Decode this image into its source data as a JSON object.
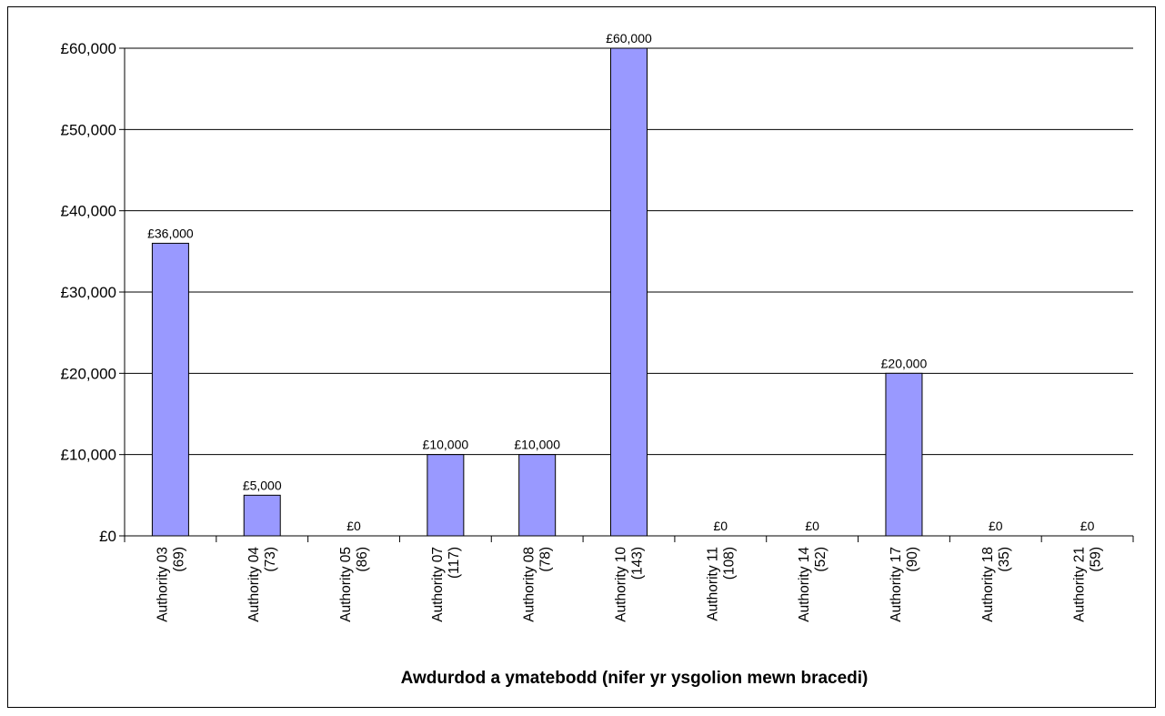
{
  "chart_data": {
    "type": "bar",
    "categories": [
      [
        "Authority 03",
        "(69)"
      ],
      [
        "Authority 04",
        "(73)"
      ],
      [
        "Authority 05",
        "(86)"
      ],
      [
        "Authority 07",
        "(117)"
      ],
      [
        "Authority 08",
        "(78)"
      ],
      [
        "Authority 10",
        "(143)"
      ],
      [
        "Authority 11",
        "(108)"
      ],
      [
        "Authority 14",
        "(52)"
      ],
      [
        "Authority 17",
        "(90)"
      ],
      [
        "Authority 18",
        "(35)"
      ],
      [
        "Authority 21",
        "(59)"
      ]
    ],
    "values": [
      36000,
      5000,
      0,
      10000,
      10000,
      60000,
      0,
      0,
      20000,
      0,
      0
    ],
    "data_labels": [
      "£36,000",
      "£5,000",
      "£0",
      "£10,000",
      "£10,000",
      "£60,000",
      "£0",
      "£0",
      "£20,000",
      "£0",
      "£0"
    ],
    "yticks": [
      0,
      10000,
      20000,
      30000,
      40000,
      50000,
      60000
    ],
    "ytick_labels": [
      "£0",
      "£10,000",
      "£20,000",
      "£30,000",
      "£40,000",
      "£50,000",
      "£60,000"
    ],
    "ylim": [
      0,
      60000
    ],
    "xlabel": "Awdurdod a ymatebodd (nifer yr ysgolion mewn bracedi)",
    "ylabel": "",
    "title": "",
    "grid": true,
    "legend": false,
    "colors": {
      "bar_fill": "#9999ff",
      "bar_stroke": "#000000",
      "grid": "#000000",
      "axis": "#000000"
    }
  }
}
